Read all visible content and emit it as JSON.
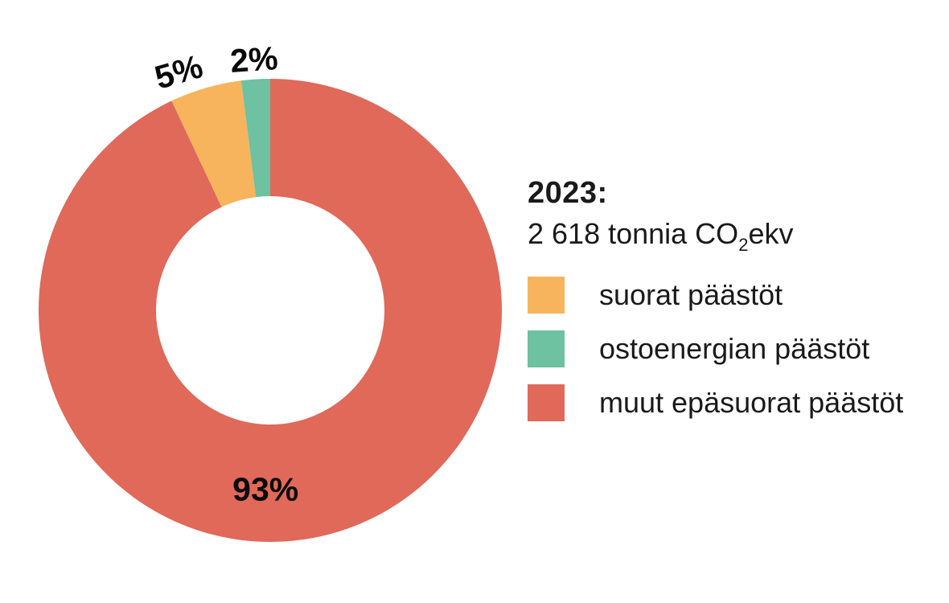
{
  "chart_data": {
    "type": "pie",
    "variant": "donut",
    "title": "2023:",
    "subtitle": {
      "prefix": "2 618 tonnia CO",
      "sub": "2",
      "suffix": "ekv"
    },
    "unit": "%",
    "start_angle_deg": 0,
    "direction": "clockwise",
    "legend_position": "right",
    "text_color": "#1a1a1a",
    "percent_label_color": "#0a0a0a",
    "slices": [
      {
        "label": "muut epäsuorat päästöt",
        "value": 93,
        "color": "#E0695A",
        "label_angle_deg": 181.5,
        "label_radius": 222,
        "label_rotation_deg": 0
      },
      {
        "label": "suorat päästöt",
        "value": 5,
        "color": "#F7B45C",
        "label_angle_deg": 339.0,
        "label_radius": 318,
        "label_rotation_deg": -16
      },
      {
        "label": "ostoenergian päästöt",
        "value": 2,
        "color": "#6EC1A1",
        "label_angle_deg": 356.3,
        "label_radius": 313,
        "label_rotation_deg": -4
      }
    ],
    "legend_order": [
      1,
      2,
      0
    ]
  }
}
